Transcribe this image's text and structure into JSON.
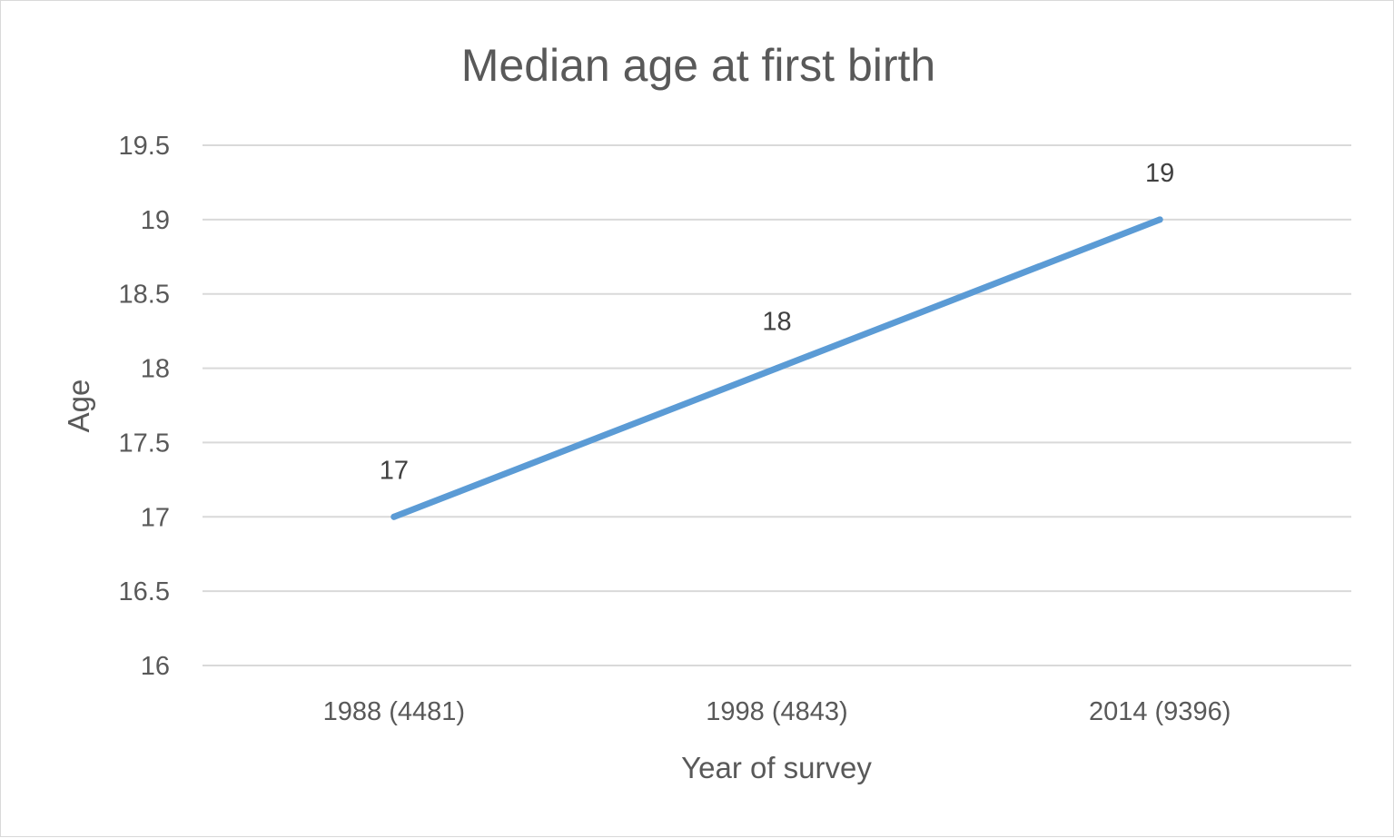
{
  "chart_data": {
    "type": "line",
    "title": "Median age at first birth",
    "xlabel": "Year of survey",
    "ylabel": "Age",
    "categories": [
      "1988  (4481)",
      "1998  (4843)",
      "2014  (9396)"
    ],
    "series": [
      {
        "values": [
          17,
          18,
          19
        ],
        "color": "#5b9bd5",
        "data_labels": [
          "17",
          "18",
          "19"
        ]
      }
    ],
    "ylim": [
      16,
      19.5
    ],
    "yticks": [
      "16",
      "16.5",
      "17",
      "17.5",
      "18",
      "18.5",
      "19",
      "19.5"
    ],
    "ytick_values": [
      16,
      16.5,
      17,
      17.5,
      18,
      18.5,
      19,
      19.5
    ],
    "grid": true,
    "legend": "none"
  }
}
